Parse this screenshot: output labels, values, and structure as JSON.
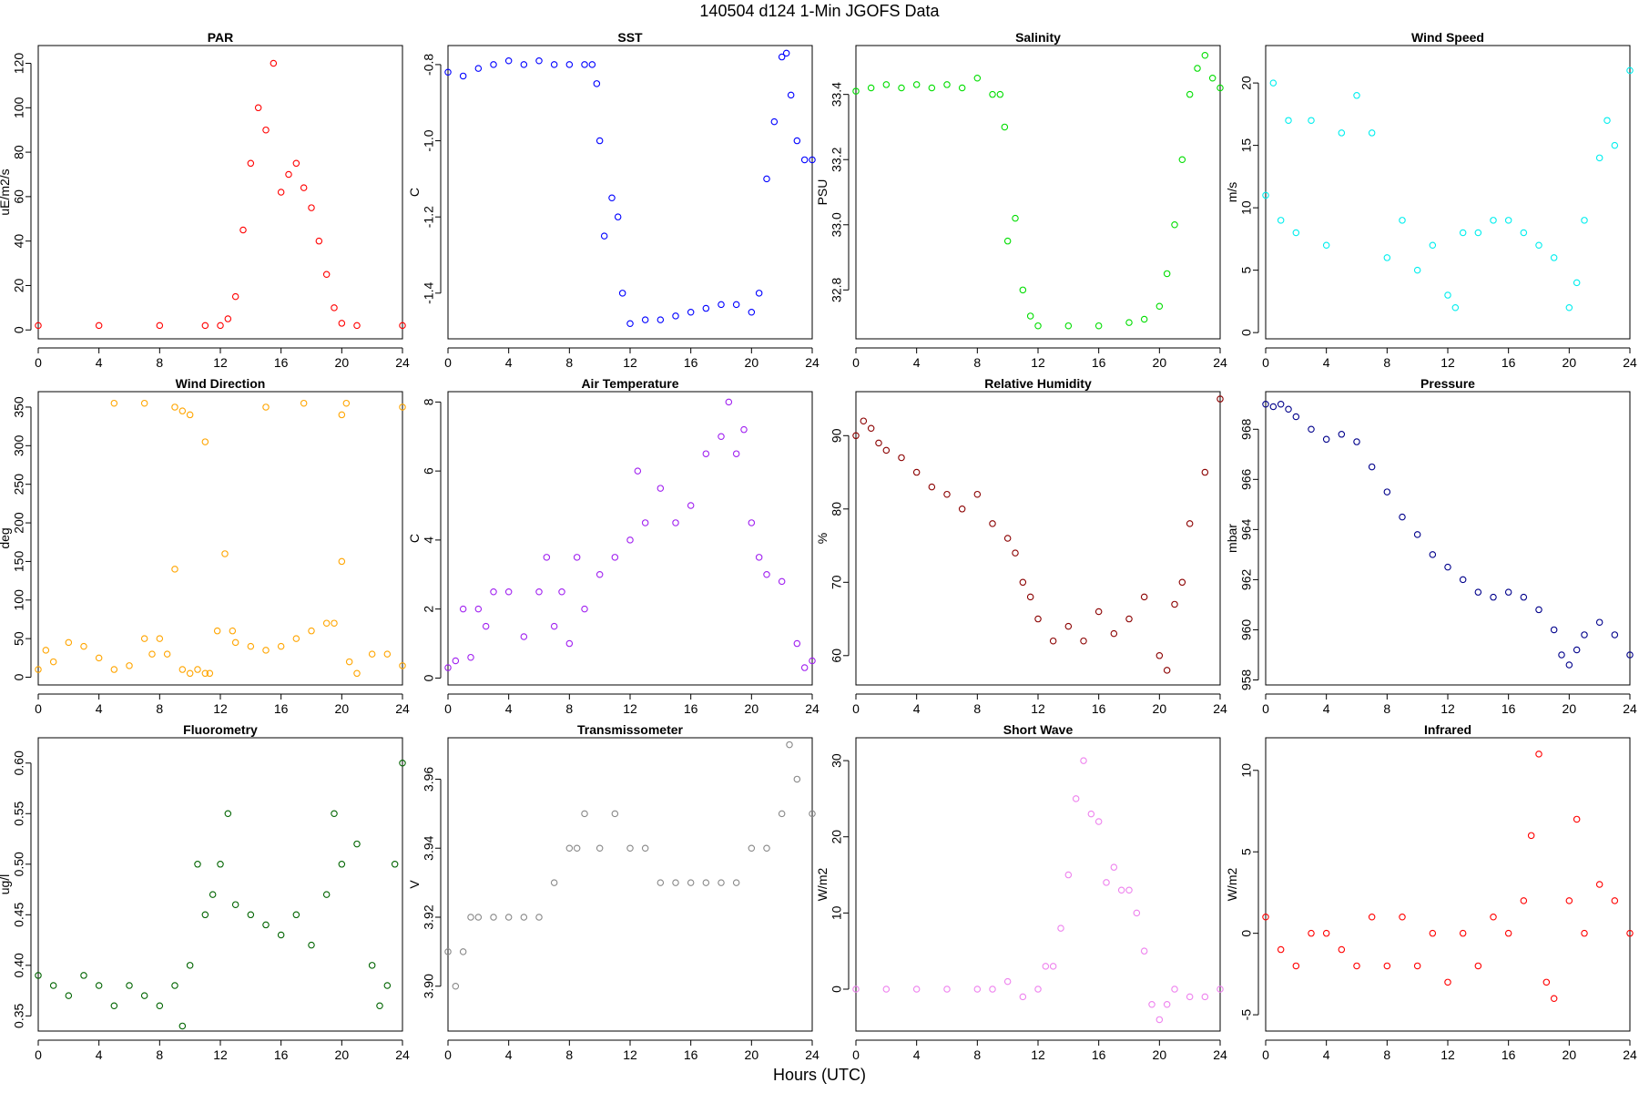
{
  "figure": {
    "title": "140504   d124   1-Min  JGOFS Data",
    "xlabel": "Hours (UTC)"
  },
  "chart_data": [
    {
      "type": "scatter",
      "title": "PAR",
      "ylabel": "uE/m2/s",
      "color": "#ff0000",
      "xlim": [
        0,
        24
      ],
      "xticks": [
        0,
        4,
        8,
        12,
        16,
        20,
        24
      ],
      "ylim": [
        -4,
        128
      ],
      "yticks": [
        0,
        20,
        40,
        60,
        80,
        100,
        120
      ],
      "ytick_labels": [
        "0",
        "20",
        "40",
        "60",
        "80",
        "100",
        "120"
      ],
      "x": [
        0,
        4,
        8,
        11,
        12,
        12.5,
        13,
        13.5,
        14,
        14.5,
        15,
        15.5,
        16,
        16.5,
        17,
        17.5,
        18,
        18.5,
        19,
        19.5,
        20,
        21,
        24
      ],
      "y": [
        2,
        2,
        2,
        2,
        2,
        5,
        15,
        45,
        75,
        100,
        90,
        120,
        62,
        70,
        75,
        64,
        55,
        40,
        25,
        10,
        3,
        2,
        2
      ]
    },
    {
      "type": "scatter",
      "title": "SST",
      "ylabel": "C",
      "color": "#0000ff",
      "xlim": [
        0,
        24
      ],
      "xticks": [
        0,
        4,
        8,
        12,
        16,
        20,
        24
      ],
      "ylim": [
        -1.52,
        -0.75
      ],
      "yticks": [
        -1.4,
        -1.2,
        -1.0,
        -0.8
      ],
      "ytick_labels": [
        "-1.4",
        "-1.2",
        "-1.0",
        "-0.8"
      ],
      "x": [
        0,
        1,
        2,
        3,
        4,
        5,
        6,
        7,
        8,
        9,
        9.5,
        9.8,
        10,
        10.3,
        10.8,
        11.2,
        11.5,
        12,
        13,
        14,
        15,
        16,
        17,
        18,
        19,
        20,
        20.5,
        21,
        21.5,
        22,
        22.3,
        22.6,
        23,
        23.5,
        24
      ],
      "y": [
        -0.82,
        -0.83,
        -0.81,
        -0.8,
        -0.79,
        -0.8,
        -0.79,
        -0.8,
        -0.8,
        -0.8,
        -0.8,
        -0.85,
        -1.0,
        -1.25,
        -1.15,
        -1.2,
        -1.4,
        -1.48,
        -1.47,
        -1.47,
        -1.46,
        -1.45,
        -1.44,
        -1.43,
        -1.43,
        -1.45,
        -1.4,
        -1.1,
        -0.95,
        -0.78,
        -0.77,
        -0.88,
        -1.0,
        -1.05,
        -1.05
      ]
    },
    {
      "type": "scatter",
      "title": "Salinity",
      "ylabel": "PSU",
      "color": "#00dd00",
      "xlim": [
        0,
        24
      ],
      "xticks": [
        0,
        4,
        8,
        12,
        16,
        20,
        24
      ],
      "ylim": [
        32.65,
        33.55
      ],
      "yticks": [
        32.8,
        33.0,
        33.2,
        33.4
      ],
      "ytick_labels": [
        "32.8",
        "33.0",
        "33.2",
        "33.4"
      ],
      "x": [
        0,
        1,
        2,
        3,
        4,
        5,
        6,
        7,
        8,
        9,
        9.5,
        9.8,
        10,
        10.5,
        11,
        11.5,
        12,
        14,
        16,
        18,
        19,
        20,
        20.5,
        21,
        21.5,
        22,
        22.5,
        23,
        23.5,
        24
      ],
      "y": [
        33.41,
        33.42,
        33.43,
        33.42,
        33.43,
        33.42,
        33.43,
        33.42,
        33.45,
        33.4,
        33.4,
        33.3,
        32.95,
        33.02,
        32.8,
        32.72,
        32.69,
        32.69,
        32.69,
        32.7,
        32.71,
        32.75,
        32.85,
        33.0,
        33.2,
        33.4,
        33.48,
        33.52,
        33.45,
        33.42
      ]
    },
    {
      "type": "scatter",
      "title": "Wind Speed",
      "ylabel": "m/s",
      "color": "#00eeee",
      "xlim": [
        0,
        24
      ],
      "xticks": [
        0,
        4,
        8,
        12,
        16,
        20,
        24
      ],
      "ylim": [
        -0.5,
        23
      ],
      "yticks": [
        0,
        5,
        10,
        15,
        20
      ],
      "ytick_labels": [
        "0",
        "5",
        "10",
        "15",
        "20"
      ],
      "x": [
        0,
        0.5,
        1,
        1.5,
        2,
        3,
        4,
        5,
        6,
        7,
        8,
        9,
        10,
        11,
        12,
        12.5,
        13,
        14,
        15,
        16,
        17,
        18,
        19,
        20,
        20.5,
        21,
        22,
        22.5,
        23,
        24
      ],
      "y": [
        11,
        20,
        9,
        17,
        8,
        17,
        7,
        16,
        19,
        16,
        6,
        9,
        5,
        7,
        3,
        2,
        8,
        8,
        9,
        9,
        8,
        7,
        6,
        2,
        4,
        9,
        14,
        17,
        15,
        21
      ]
    },
    {
      "type": "scatter",
      "title": "Wind Direction",
      "ylabel": "deg",
      "color": "#ffa500",
      "xlim": [
        0,
        24
      ],
      "xticks": [
        0,
        4,
        8,
        12,
        16,
        20,
        24
      ],
      "ylim": [
        -10,
        370
      ],
      "yticks": [
        0,
        50,
        100,
        150,
        200,
        250,
        300,
        350
      ],
      "ytick_labels": [
        "0",
        "50",
        "100",
        "150",
        "200",
        "250",
        "300",
        "350"
      ],
      "x": [
        0,
        0.5,
        1,
        2,
        3,
        4,
        5,
        6,
        7,
        7.5,
        8,
        8.5,
        9,
        9.5,
        10,
        10.5,
        11,
        11.3,
        11.8,
        12.3,
        12.8,
        13,
        14,
        15,
        16,
        17,
        18,
        19,
        19.5,
        20,
        20.5,
        21,
        22,
        23,
        24,
        5,
        7,
        9,
        9.5,
        10,
        11,
        15,
        17.5,
        20,
        20.3,
        24
      ],
      "y": [
        10,
        35,
        20,
        45,
        40,
        25,
        10,
        15,
        50,
        30,
        50,
        30,
        140,
        10,
        5,
        10,
        5,
        5,
        60,
        160,
        60,
        45,
        40,
        35,
        40,
        50,
        60,
        70,
        70,
        150,
        20,
        5,
        30,
        30,
        15,
        355,
        355,
        350,
        345,
        340,
        305,
        350,
        355,
        340,
        355,
        350
      ]
    },
    {
      "type": "scatter",
      "title": "Air Temperature",
      "ylabel": "C",
      "color": "#a020f0",
      "xlim": [
        0,
        24
      ],
      "xticks": [
        0,
        4,
        8,
        12,
        16,
        20,
        24
      ],
      "ylim": [
        -0.2,
        8.3
      ],
      "yticks": [
        0,
        2,
        4,
        6,
        8
      ],
      "ytick_labels": [
        "0",
        "2",
        "4",
        "6",
        "8"
      ],
      "x": [
        0,
        0.5,
        1,
        1.5,
        2,
        2.5,
        3,
        4,
        5,
        6,
        6.5,
        7,
        7.5,
        8,
        8.5,
        9,
        10,
        11,
        12,
        12.5,
        13,
        14,
        15,
        16,
        17,
        18,
        18.5,
        19,
        19.5,
        20,
        20.5,
        21,
        22,
        23,
        23.5,
        24
      ],
      "y": [
        0.3,
        0.5,
        2.0,
        0.6,
        2.0,
        1.5,
        2.5,
        2.5,
        1.2,
        2.5,
        3.5,
        1.5,
        2.5,
        1.0,
        3.5,
        2.0,
        3.0,
        3.5,
        4.0,
        6.0,
        4.5,
        5.5,
        4.5,
        5.0,
        6.5,
        7.0,
        8.0,
        6.5,
        7.2,
        4.5,
        3.5,
        3.0,
        2.8,
        1.0,
        0.3,
        0.5
      ]
    },
    {
      "type": "scatter",
      "title": "Relative Humidity",
      "ylabel": "%",
      "color": "#8b0000",
      "xlim": [
        0,
        24
      ],
      "xticks": [
        0,
        4,
        8,
        12,
        16,
        20,
        24
      ],
      "ylim": [
        56,
        96
      ],
      "yticks": [
        60,
        70,
        80,
        90
      ],
      "ytick_labels": [
        "60",
        "70",
        "80",
        "90"
      ],
      "x": [
        0,
        0.5,
        1,
        1.5,
        2,
        3,
        4,
        5,
        6,
        7,
        8,
        9,
        10,
        10.5,
        11,
        11.5,
        12,
        13,
        14,
        15,
        16,
        17,
        18,
        19,
        20,
        20.5,
        21,
        21.5,
        22,
        23,
        24
      ],
      "y": [
        90,
        92,
        91,
        89,
        88,
        87,
        85,
        83,
        82,
        80,
        82,
        78,
        76,
        74,
        70,
        68,
        65,
        62,
        64,
        62,
        66,
        63,
        65,
        68,
        60,
        58,
        67,
        70,
        78,
        85,
        95
      ]
    },
    {
      "type": "scatter",
      "title": "Pressure",
      "ylabel": "mbar",
      "color": "#00008b",
      "xlim": [
        0,
        24
      ],
      "xticks": [
        0,
        4,
        8,
        12,
        16,
        20,
        24
      ],
      "ylim": [
        957.8,
        969.5
      ],
      "yticks": [
        958,
        960,
        962,
        964,
        966,
        968
      ],
      "ytick_labels": [
        "958",
        "960",
        "962",
        "964",
        "966",
        "968"
      ],
      "x": [
        0,
        0.5,
        1,
        1.5,
        2,
        3,
        4,
        5,
        6,
        7,
        8,
        9,
        10,
        11,
        12,
        13,
        14,
        15,
        16,
        17,
        18,
        19,
        19.5,
        20,
        20.5,
        21,
        22,
        23,
        24
      ],
      "y": [
        969,
        968.9,
        969,
        968.8,
        968.5,
        968,
        967.6,
        967.8,
        967.5,
        966.5,
        965.5,
        964.5,
        963.8,
        963.0,
        962.5,
        962.0,
        961.5,
        961.3,
        961.5,
        961.3,
        960.8,
        960.0,
        959.0,
        958.6,
        959.2,
        959.8,
        960.3,
        959.8,
        959.0
      ]
    },
    {
      "type": "scatter",
      "title": "Fluorometry",
      "ylabel": "ug/l",
      "color": "#006400",
      "xlim": [
        0,
        24
      ],
      "xticks": [
        0,
        4,
        8,
        12,
        16,
        20,
        24
      ],
      "ylim": [
        0.335,
        0.625
      ],
      "yticks": [
        0.35,
        0.4,
        0.45,
        0.5,
        0.55,
        0.6
      ],
      "ytick_labels": [
        "0.35",
        "0.40",
        "0.45",
        "0.50",
        "0.55",
        "0.60"
      ],
      "x": [
        0,
        1,
        2,
        3,
        4,
        5,
        6,
        7,
        8,
        9,
        9.5,
        10,
        10.5,
        11,
        11.5,
        12,
        12.5,
        13,
        14,
        15,
        16,
        17,
        18,
        19,
        19.5,
        20,
        21,
        22,
        22.5,
        23,
        23.5,
        24
      ],
      "y": [
        0.39,
        0.38,
        0.37,
        0.39,
        0.38,
        0.36,
        0.38,
        0.37,
        0.36,
        0.38,
        0.34,
        0.4,
        0.5,
        0.45,
        0.47,
        0.5,
        0.55,
        0.46,
        0.45,
        0.44,
        0.43,
        0.45,
        0.42,
        0.47,
        0.55,
        0.5,
        0.52,
        0.4,
        0.36,
        0.38,
        0.5,
        0.6
      ]
    },
    {
      "type": "scatter",
      "title": "Transmissometer",
      "ylabel": "V",
      "color": "#888888",
      "xlim": [
        0,
        24
      ],
      "xticks": [
        0,
        4,
        8,
        12,
        16,
        20,
        24
      ],
      "ylim": [
        3.887,
        3.972
      ],
      "yticks": [
        3.9,
        3.92,
        3.94,
        3.96
      ],
      "ytick_labels": [
        "3.90",
        "3.92",
        "3.94",
        "3.96"
      ],
      "x": [
        0,
        0.5,
        1,
        1.5,
        2,
        3,
        4,
        5,
        6,
        7,
        8,
        8.5,
        9,
        10,
        11,
        12,
        13,
        14,
        15,
        16,
        17,
        18,
        19,
        20,
        21,
        22,
        22.5,
        23,
        24
      ],
      "y": [
        3.91,
        3.9,
        3.91,
        3.92,
        3.92,
        3.92,
        3.92,
        3.92,
        3.92,
        3.93,
        3.94,
        3.94,
        3.95,
        3.94,
        3.95,
        3.94,
        3.94,
        3.93,
        3.93,
        3.93,
        3.93,
        3.93,
        3.93,
        3.94,
        3.94,
        3.95,
        3.97,
        3.96,
        3.95
      ]
    },
    {
      "type": "scatter",
      "title": "Short Wave",
      "ylabel": "W/m2",
      "color": "#ee82ee",
      "xlim": [
        0,
        24
      ],
      "xticks": [
        0,
        4,
        8,
        12,
        16,
        20,
        24
      ],
      "ylim": [
        -5.5,
        33
      ],
      "yticks": [
        0,
        10,
        20,
        30
      ],
      "ytick_labels": [
        "0",
        "10",
        "20",
        "30"
      ],
      "x": [
        0,
        2,
        4,
        6,
        8,
        9,
        10,
        11,
        12,
        12.5,
        13,
        13.5,
        14,
        14.5,
        15,
        15.5,
        16,
        16.5,
        17,
        17.5,
        18,
        18.5,
        19,
        19.5,
        20,
        20.5,
        21,
        22,
        23,
        24
      ],
      "y": [
        0,
        0,
        0,
        0,
        0,
        0,
        1,
        -1,
        0,
        3,
        3,
        8,
        15,
        25,
        30,
        23,
        22,
        14,
        16,
        13,
        13,
        10,
        5,
        -2,
        -4,
        -2,
        0,
        -1,
        -1,
        0
      ]
    },
    {
      "type": "scatter",
      "title": "Infrared",
      "ylabel": "W/m2",
      "color": "#ff0000",
      "xlim": [
        0,
        24
      ],
      "xticks": [
        0,
        4,
        8,
        12,
        16,
        20,
        24
      ],
      "ylim": [
        -6,
        12
      ],
      "yticks": [
        -5,
        0,
        5,
        10
      ],
      "ytick_labels": [
        "-5",
        "0",
        "5",
        "10"
      ],
      "x": [
        0,
        1,
        2,
        3,
        4,
        5,
        6,
        7,
        8,
        9,
        10,
        11,
        12,
        13,
        14,
        15,
        16,
        17,
        17.5,
        18,
        18.5,
        19,
        20,
        20.5,
        21,
        22,
        23,
        24
      ],
      "y": [
        1,
        -1,
        -2,
        0,
        0,
        -1,
        -2,
        1,
        -2,
        1,
        -2,
        0,
        -3,
        0,
        -2,
        1,
        0,
        2,
        6,
        11,
        -3,
        -4,
        2,
        7,
        0,
        3,
        2,
        0
      ]
    }
  ]
}
